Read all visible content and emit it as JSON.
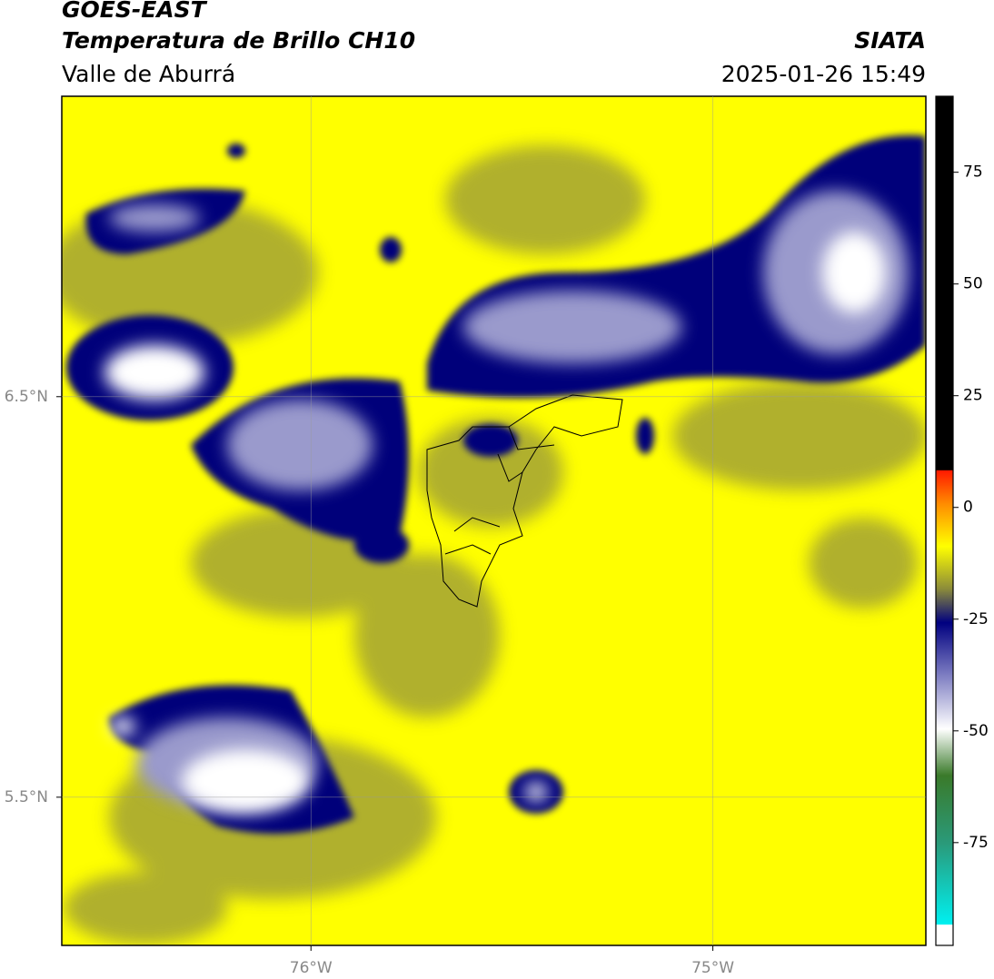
{
  "header": {
    "satellite": "GOES-EAST",
    "product": "Temperatura de Brillo CH10",
    "region": "Valle de Aburrá",
    "agency": "SIATA",
    "datetime": "2025-01-26 15:49"
  },
  "map": {
    "xlim": [
      -76.62,
      -74.47
    ],
    "ylim": [
      5.13,
      7.25
    ],
    "xticks": [
      {
        "value": -76,
        "label": "76°W"
      },
      {
        "value": -75,
        "label": "75°W"
      }
    ],
    "yticks": [
      {
        "value": 6.5,
        "label": "6.5°N"
      },
      {
        "value": 5.5,
        "label": "5.5°N"
      }
    ]
  },
  "colorbar": {
    "lim": [
      -98,
      92
    ],
    "ticks": [
      75,
      50,
      25,
      0,
      -25,
      -50,
      -75
    ]
  }
}
